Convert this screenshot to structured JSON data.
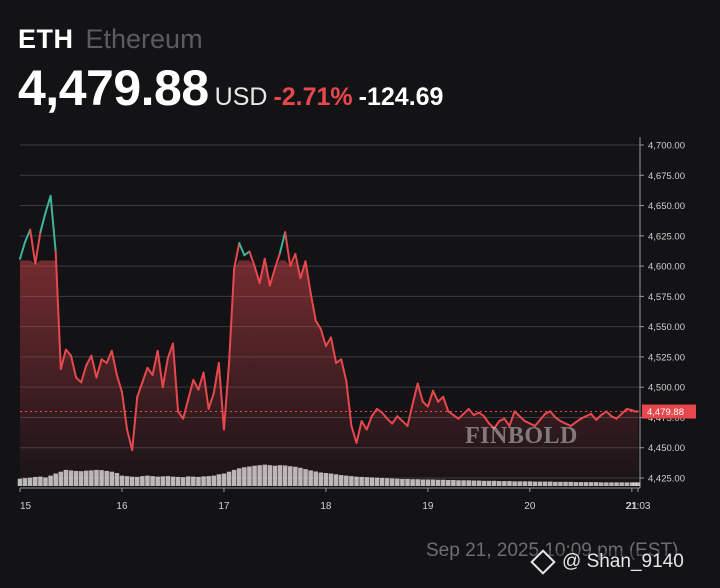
{
  "header": {
    "symbol": "ETH",
    "name": "Ethereum",
    "price": "4,479.88",
    "currency": "USD",
    "change_pct": "-2.71%",
    "change_abs": "-124.69"
  },
  "colors": {
    "background": "#131316",
    "down": "#e8484d",
    "up": "#3fb39a",
    "grid": "#3a3b40",
    "volume": "#d9d9d9"
  },
  "chart_data": {
    "type": "line",
    "ylim": [
      4425,
      4700
    ],
    "yticks": [
      4700,
      4675,
      4650,
      4625,
      4600,
      4575,
      4550,
      4525,
      4500,
      4475,
      4450,
      4425
    ],
    "ytick_labels": [
      "4,700.00",
      "4,675.00",
      "4,650.00",
      "4,625.00",
      "4,600.00",
      "4,575.00",
      "4,550.00",
      "4,525.00",
      "4,500.00",
      "4,475.00",
      "4,450.00",
      "4,425.00"
    ],
    "xlim": [
      15,
      21.08
    ],
    "xticks": [
      15,
      16,
      17,
      18,
      19,
      20,
      21,
      21.06
    ],
    "xtick_labels": [
      "15",
      "16",
      "17",
      "18",
      "19",
      "20",
      "21",
      "21:03"
    ],
    "current_label": "4,479.88",
    "current_value": 4479.88,
    "reference_value": 4604.57,
    "grid": true,
    "series": [
      {
        "x": [
          15.0,
          15.05,
          15.1,
          15.15,
          15.2,
          15.25,
          15.3,
          15.35,
          15.4,
          15.45,
          15.5,
          15.55,
          15.6,
          15.65,
          15.7,
          15.75,
          15.8,
          15.85,
          15.9,
          15.95,
          16.0,
          16.05,
          16.1,
          16.15,
          16.2,
          16.25,
          16.3,
          16.35,
          16.4,
          16.45,
          16.5,
          16.55,
          16.6,
          16.65,
          16.7,
          16.75,
          16.8,
          16.85,
          16.9,
          16.95,
          17.0,
          17.05,
          17.1,
          17.15,
          17.2,
          17.25,
          17.3,
          17.35,
          17.4,
          17.45,
          17.5,
          17.55,
          17.6,
          17.65,
          17.7,
          17.75,
          17.8,
          17.85,
          17.9,
          17.95,
          18.0,
          18.05,
          18.1,
          18.15,
          18.2,
          18.25,
          18.3,
          18.35,
          18.4,
          18.45,
          18.5,
          18.55,
          18.6,
          18.65,
          18.7,
          18.75,
          18.8,
          18.85,
          18.9,
          18.95,
          19.0,
          19.05,
          19.1,
          19.15,
          19.2,
          19.25,
          19.3,
          19.35,
          19.4,
          19.45,
          19.5,
          19.55,
          19.6,
          19.65,
          19.7,
          19.75,
          19.8,
          19.85,
          19.9,
          19.95,
          20.0,
          20.05,
          20.1,
          20.15,
          20.2,
          20.25,
          20.3,
          20.35,
          20.4,
          20.45,
          20.5,
          20.55,
          20.6,
          20.65,
          20.7,
          20.75,
          20.8,
          20.85,
          20.9,
          20.95,
          21.0,
          21.03,
          21.06
        ],
        "values": [
          4606,
          4620,
          4630,
          4602,
          4628,
          4644,
          4658,
          4612,
          4515,
          4531,
          4526,
          4508,
          4504,
          4518,
          4526,
          4508,
          4523,
          4520,
          4530,
          4510,
          4496,
          4465,
          4448,
          4492,
          4504,
          4516,
          4510,
          4530,
          4500,
          4524,
          4536,
          4480,
          4474,
          4490,
          4506,
          4498,
          4512,
          4482,
          4495,
          4520,
          4465,
          4520,
          4598,
          4619,
          4609,
          4612,
          4600,
          4586,
          4606,
          4584,
          4598,
          4611,
          4628,
          4600,
          4610,
          4590,
          4604,
          4578,
          4555,
          4548,
          4534,
          4541,
          4520,
          4523,
          4505,
          4468,
          4454,
          4472,
          4465,
          4476,
          4482,
          4479,
          4474,
          4470,
          4476,
          4472,
          4468,
          4486,
          4503,
          4488,
          4484,
          4497,
          4488,
          4492,
          4480,
          4477,
          4474,
          4478,
          4482,
          4477,
          4479,
          4476,
          4470,
          4466,
          4472,
          4474,
          4468,
          4480,
          4476,
          4472,
          4470,
          4468,
          4473,
          4478,
          4480,
          4475,
          4472,
          4470,
          4468,
          4471,
          4474,
          4476,
          4478,
          4473,
          4477,
          4480,
          4476,
          4474,
          4478,
          4482,
          4481,
          4480,
          4479.88
        ],
        "volume": [
          0.28,
          0.3,
          0.32,
          0.35,
          0.36,
          0.33,
          0.4,
          0.48,
          0.55,
          0.62,
          0.6,
          0.58,
          0.57,
          0.59,
          0.6,
          0.62,
          0.61,
          0.58,
          0.55,
          0.5,
          0.4,
          0.38,
          0.36,
          0.35,
          0.38,
          0.4,
          0.38,
          0.36,
          0.37,
          0.38,
          0.36,
          0.35,
          0.34,
          0.37,
          0.36,
          0.35,
          0.37,
          0.38,
          0.4,
          0.45,
          0.48,
          0.55,
          0.62,
          0.68,
          0.72,
          0.75,
          0.78,
          0.8,
          0.82,
          0.8,
          0.78,
          0.8,
          0.79,
          0.76,
          0.74,
          0.7,
          0.65,
          0.6,
          0.56,
          0.52,
          0.5,
          0.48,
          0.45,
          0.42,
          0.4,
          0.38,
          0.36,
          0.35,
          0.34,
          0.33,
          0.32,
          0.31,
          0.3,
          0.29,
          0.28,
          0.27,
          0.27,
          0.26,
          0.26,
          0.25,
          0.25,
          0.25,
          0.24,
          0.24,
          0.23,
          0.23,
          0.22,
          0.22,
          0.22,
          0.21,
          0.21,
          0.2,
          0.2,
          0.2,
          0.19,
          0.19,
          0.19,
          0.18,
          0.18,
          0.18,
          0.18,
          0.17,
          0.17,
          0.17,
          0.17,
          0.16,
          0.16,
          0.16,
          0.16,
          0.15,
          0.15,
          0.15,
          0.15,
          0.15,
          0.14,
          0.14,
          0.14,
          0.14,
          0.14,
          0.14,
          0.14,
          0.14,
          0.14
        ]
      }
    ]
  },
  "watermark": "FINBOLD",
  "footer": {
    "timestamp": "Sep 21, 2025 10:09 pm (EST)",
    "credit": "@ Shan_9140"
  }
}
